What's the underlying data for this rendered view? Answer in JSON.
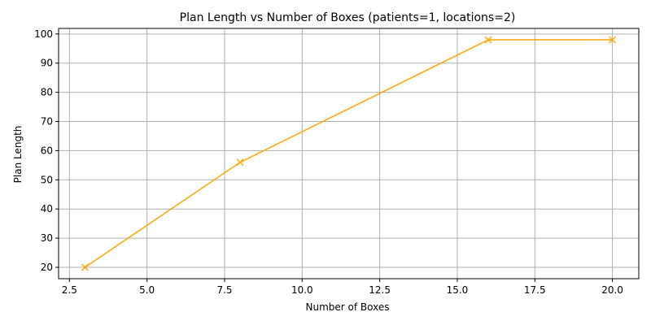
{
  "chart_data": {
    "type": "line",
    "title": "Plan Length vs Number of Boxes (patients=1, locations=2)",
    "xlabel": "Number of Boxes",
    "ylabel": "Plan Length",
    "xlim": [
      2.15,
      20.85
    ],
    "ylim": [
      16.1,
      101.9
    ],
    "xticks": [
      2.5,
      5.0,
      7.5,
      10.0,
      12.5,
      15.0,
      17.5,
      20.0
    ],
    "xtick_labels": [
      "2.5",
      "5.0",
      "7.5",
      "10.0",
      "12.5",
      "15.0",
      "17.5",
      "20.0"
    ],
    "yticks": [
      20,
      30,
      40,
      50,
      60,
      70,
      80,
      90,
      100
    ],
    "ytick_labels": [
      "20",
      "30",
      "40",
      "50",
      "60",
      "70",
      "80",
      "90",
      "100"
    ],
    "grid": true,
    "series": [
      {
        "color": "#ffa500",
        "marker": "x",
        "x": [
          3,
          8,
          16,
          20
        ],
        "y": [
          20,
          56,
          98,
          98
        ]
      }
    ]
  }
}
